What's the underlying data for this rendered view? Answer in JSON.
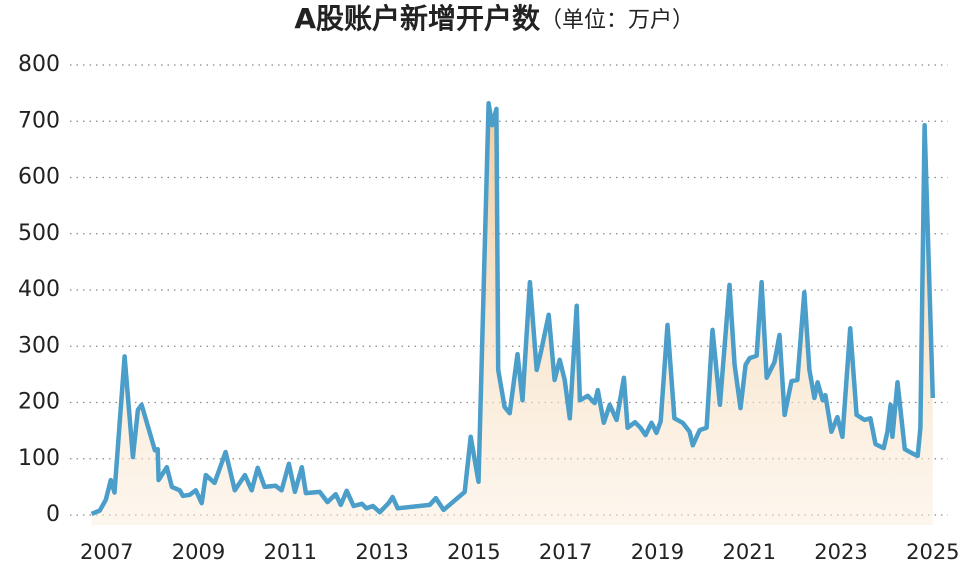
{
  "chart_data": {
    "type": "line",
    "title": "A股账户新增开户数",
    "subtitle": "（单位：万户）",
    "x": [
      2006.67,
      2006.85,
      2006.98,
      2007.09,
      2007.17,
      2007.39,
      2007.57,
      2007.68,
      2007.76,
      2008.05,
      2008.11,
      2008.13,
      2008.31,
      2008.42,
      2008.59,
      2008.66,
      2008.81,
      2008.94,
      2009.07,
      2009.16,
      2009.35,
      2009.59,
      2009.79,
      2010.01,
      2010.16,
      2010.29,
      2010.44,
      2010.68,
      2010.81,
      2010.97,
      2011.1,
      2011.25,
      2011.34,
      2011.64,
      2011.81,
      2011.99,
      2012.1,
      2012.23,
      2012.38,
      2012.56,
      2012.66,
      2012.8,
      2012.95,
      2013.14,
      2013.23,
      2013.34,
      2014.04,
      2014.17,
      2014.34,
      2014.8,
      2014.93,
      2015.1,
      2015.32,
      2015.4,
      2015.49,
      2015.53,
      2015.67,
      2015.78,
      2015.95,
      2016.06,
      2016.22,
      2016.37,
      2016.47,
      2016.63,
      2016.76,
      2016.87,
      2016.98,
      2017.09,
      2017.24,
      2017.31,
      2017.48,
      2017.63,
      2017.7,
      2017.83,
      2017.96,
      2018.11,
      2018.27,
      2018.35,
      2018.51,
      2018.63,
      2018.74,
      2018.87,
      2018.98,
      2019.07,
      2019.22,
      2019.37,
      2019.55,
      2019.7,
      2019.77,
      2019.92,
      2020.07,
      2020.2,
      2020.36,
      2020.57,
      2020.68,
      2020.81,
      2020.92,
      2021.01,
      2021.16,
      2021.27,
      2021.38,
      2021.55,
      2021.66,
      2021.77,
      2021.92,
      2022.05,
      2022.2,
      2022.31,
      2022.42,
      2022.49,
      2022.6,
      2022.66,
      2022.79,
      2022.92,
      2023.03,
      2023.2,
      2023.34,
      2023.51,
      2023.64,
      2023.75,
      2023.93,
      2024.01,
      2024.08,
      2024.12,
      2024.23,
      2024.39,
      2024.54,
      2024.67,
      2024.73,
      2024.82,
      2025.0
    ],
    "series": [
      {
        "color": "#4a9ec9",
        "values": [
          2,
          8,
          27,
          62,
          40,
          282,
          103,
          187,
          196,
          115,
          117,
          62,
          85,
          50,
          44,
          34,
          36,
          44,
          21,
          71,
          57,
          112,
          44,
          71,
          44,
          84,
          50,
          52,
          44,
          91,
          41,
          85,
          39,
          41,
          23,
          37,
          18,
          43,
          16,
          20,
          12,
          16,
          5,
          21,
          32,
          12,
          18,
          30,
          9,
          41,
          139,
          59,
          732,
          693,
          722,
          258,
          192,
          181,
          286,
          204,
          414,
          258,
          293,
          356,
          240,
          276,
          240,
          172,
          372,
          204,
          212,
          199,
          222,
          164,
          196,
          169,
          244,
          155,
          165,
          155,
          142,
          164,
          146,
          167,
          338,
          172,
          164,
          148,
          124,
          151,
          155,
          329,
          196,
          409,
          267,
          190,
          267,
          279,
          283,
          414,
          244,
          272,
          320,
          178,
          238,
          240,
          396,
          258,
          208,
          236,
          204,
          213,
          148,
          174,
          139,
          332,
          178,
          169,
          172,
          126,
          119,
          148,
          196,
          139,
          236,
          117,
          110,
          105,
          155,
          693,
          208
        ]
      }
    ],
    "xlim": [
      2006.2,
      2025.2
    ],
    "xticks": [
      2007,
      2009,
      2011,
      2013,
      2015,
      2017,
      2019,
      2021,
      2023,
      2025
    ],
    "ylim": [
      0,
      800
    ],
    "yticks": [
      0,
      100,
      200,
      300,
      400,
      500,
      600,
      700,
      800
    ],
    "grid": true
  }
}
